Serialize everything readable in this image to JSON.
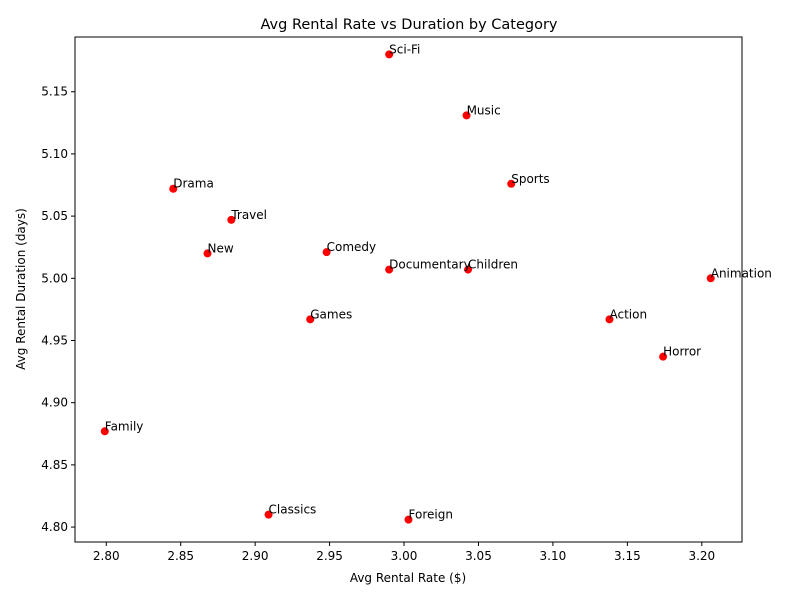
{
  "chart_data": {
    "type": "scatter",
    "title": "Avg Rental Rate vs Duration by Category",
    "xlabel": "Avg Rental Rate ($)",
    "ylabel": "Avg Rental Duration (days)",
    "xlim": [
      2.779,
      3.227
    ],
    "ylim": [
      4.788,
      5.194
    ],
    "xticks": [
      "2.80",
      "2.85",
      "2.90",
      "2.95",
      "3.00",
      "3.05",
      "3.10",
      "3.15",
      "3.20"
    ],
    "yticks": [
      "4.80",
      "4.85",
      "4.90",
      "4.95",
      "5.00",
      "5.05",
      "5.10",
      "5.15"
    ],
    "marker_color": "#ff0000",
    "grid": false,
    "points": [
      {
        "label": "Sci-Fi",
        "x": 2.99,
        "y": 5.18
      },
      {
        "label": "Music",
        "x": 3.042,
        "y": 5.131
      },
      {
        "label": "Sports",
        "x": 3.072,
        "y": 5.076
      },
      {
        "label": "Drama",
        "x": 2.845,
        "y": 5.072
      },
      {
        "label": "Travel",
        "x": 2.884,
        "y": 5.047
      },
      {
        "label": "Comedy",
        "x": 2.948,
        "y": 5.021
      },
      {
        "label": "New",
        "x": 2.868,
        "y": 5.02
      },
      {
        "label": "Documentary",
        "x": 2.99,
        "y": 5.007
      },
      {
        "label": "Children",
        "x": 3.043,
        "y": 5.007
      },
      {
        "label": "Animation",
        "x": 3.206,
        "y": 5.0
      },
      {
        "label": "Games",
        "x": 2.937,
        "y": 4.967
      },
      {
        "label": "Action",
        "x": 3.138,
        "y": 4.967
      },
      {
        "label": "Horror",
        "x": 3.174,
        "y": 4.937
      },
      {
        "label": "Family",
        "x": 2.799,
        "y": 4.877
      },
      {
        "label": "Classics",
        "x": 2.909,
        "y": 4.81
      },
      {
        "label": "Foreign",
        "x": 3.003,
        "y": 4.806
      }
    ]
  }
}
